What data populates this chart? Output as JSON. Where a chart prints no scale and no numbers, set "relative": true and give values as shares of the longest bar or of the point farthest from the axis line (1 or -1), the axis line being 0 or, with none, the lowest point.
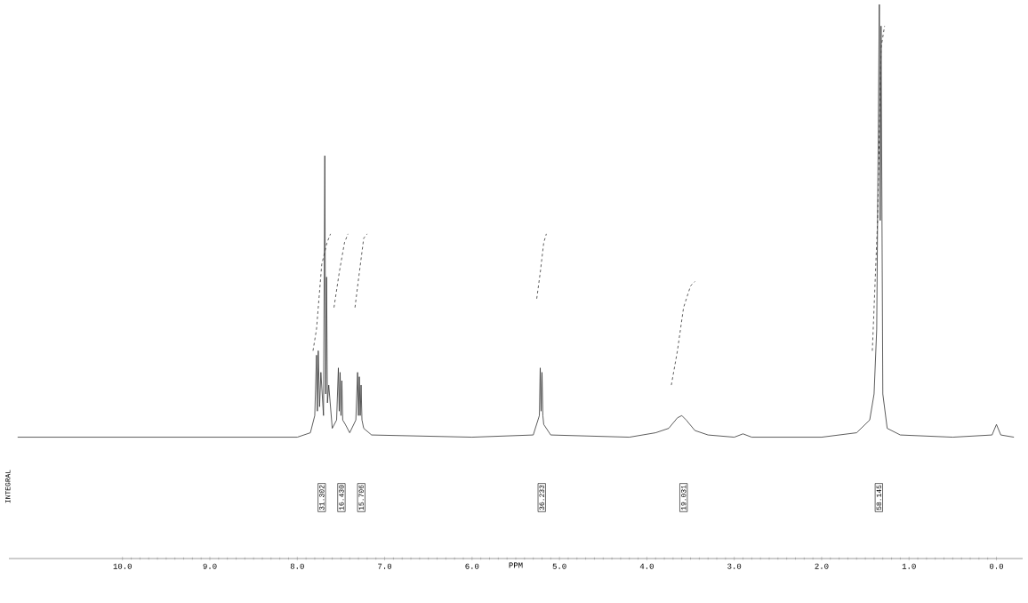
{
  "chart_data": {
    "type": "line",
    "relative": true,
    "xlabel": "PPM",
    "xlim": [
      11.3,
      -0.3
    ],
    "xticks": [
      {
        "value": 10,
        "label": "10.0"
      },
      {
        "value": 9,
        "label": "9.0"
      },
      {
        "value": 8,
        "label": "8.0"
      },
      {
        "value": 7,
        "label": "7.0"
      },
      {
        "value": 6,
        "label": "6.0"
      },
      {
        "value": 5,
        "label": "5.0"
      },
      {
        "value": 4,
        "label": "4.0"
      },
      {
        "value": 3,
        "label": "3.0"
      },
      {
        "value": 2,
        "label": "2.0"
      },
      {
        "value": 1,
        "label": "1.0"
      },
      {
        "value": 0,
        "label": "0.0"
      }
    ],
    "marker": "none",
    "series": [
      {
        "color": "#333333",
        "line_style": "solid",
        "x": [
          11.2,
          8.0,
          7.85,
          7.8,
          7.78,
          7.77,
          7.76,
          7.745,
          7.73,
          7.7,
          7.685,
          7.675,
          7.665,
          7.655,
          7.64,
          7.6,
          7.55,
          7.53,
          7.52,
          7.51,
          7.5,
          7.49,
          7.48,
          7.45,
          7.4,
          7.33,
          7.31,
          7.3,
          7.29,
          7.28,
          7.27,
          7.26,
          7.24,
          7.15,
          6.0,
          5.3,
          5.23,
          5.22,
          5.21,
          5.2,
          5.19,
          5.18,
          5.1,
          4.2,
          3.9,
          3.75,
          3.65,
          3.6,
          3.55,
          3.45,
          3.3,
          3.0,
          2.9,
          2.8,
          2.0,
          1.6,
          1.45,
          1.4,
          1.37,
          1.34,
          1.33,
          1.32,
          1.3,
          1.25,
          1.1,
          0.5,
          0.05,
          0.0,
          -0.05,
          -0.2
        ],
        "values": [
          0.219,
          0.219,
          0.227,
          0.258,
          0.367,
          0.266,
          0.375,
          0.274,
          0.336,
          0.258,
          0.727,
          0.297,
          0.508,
          0.281,
          0.313,
          0.235,
          0.25,
          0.344,
          0.266,
          0.336,
          0.258,
          0.321,
          0.25,
          0.242,
          0.227,
          0.25,
          0.336,
          0.258,
          0.328,
          0.258,
          0.313,
          0.25,
          0.235,
          0.223,
          0.219,
          0.223,
          0.258,
          0.344,
          0.266,
          0.336,
          0.258,
          0.242,
          0.223,
          0.219,
          0.227,
          0.235,
          0.254,
          0.258,
          0.25,
          0.231,
          0.223,
          0.219,
          0.225,
          0.219,
          0.219,
          0.227,
          0.25,
          0.297,
          0.414,
          1.0,
          0.61,
          0.961,
          0.297,
          0.235,
          0.223,
          0.219,
          0.223,
          0.242,
          0.223,
          0.219
        ]
      },
      {
        "color": "#333333",
        "line_style": "dashed",
        "x": [
          7.82,
          7.78,
          7.72,
          7.66,
          7.62,
          7.6,
          7.58,
          7.52,
          7.46,
          7.42,
          7.38,
          7.34,
          7.29,
          7.24,
          7.2,
          6.0,
          5.26,
          5.22,
          5.18,
          5.15,
          4.5,
          3.72,
          3.65,
          3.58,
          3.5,
          3.45,
          2.0,
          1.42,
          1.36,
          1.32,
          1.28
        ],
        "values": [
          0.375,
          0.414,
          0.531,
          0.57,
          0.586,
          null,
          0.453,
          0.516,
          0.57,
          0.586,
          null,
          0.453,
          0.516,
          0.578,
          0.586,
          null,
          0.469,
          0.516,
          0.57,
          0.586,
          null,
          0.313,
          0.375,
          0.453,
          0.492,
          0.5,
          null,
          0.375,
          0.61,
          0.922,
          0.961
        ]
      }
    ],
    "annotations": [
      "INTEGRAL",
      "31.302",
      "16.430",
      "15.706",
      "36.233",
      "19.031",
      "58.145"
    ]
  }
}
